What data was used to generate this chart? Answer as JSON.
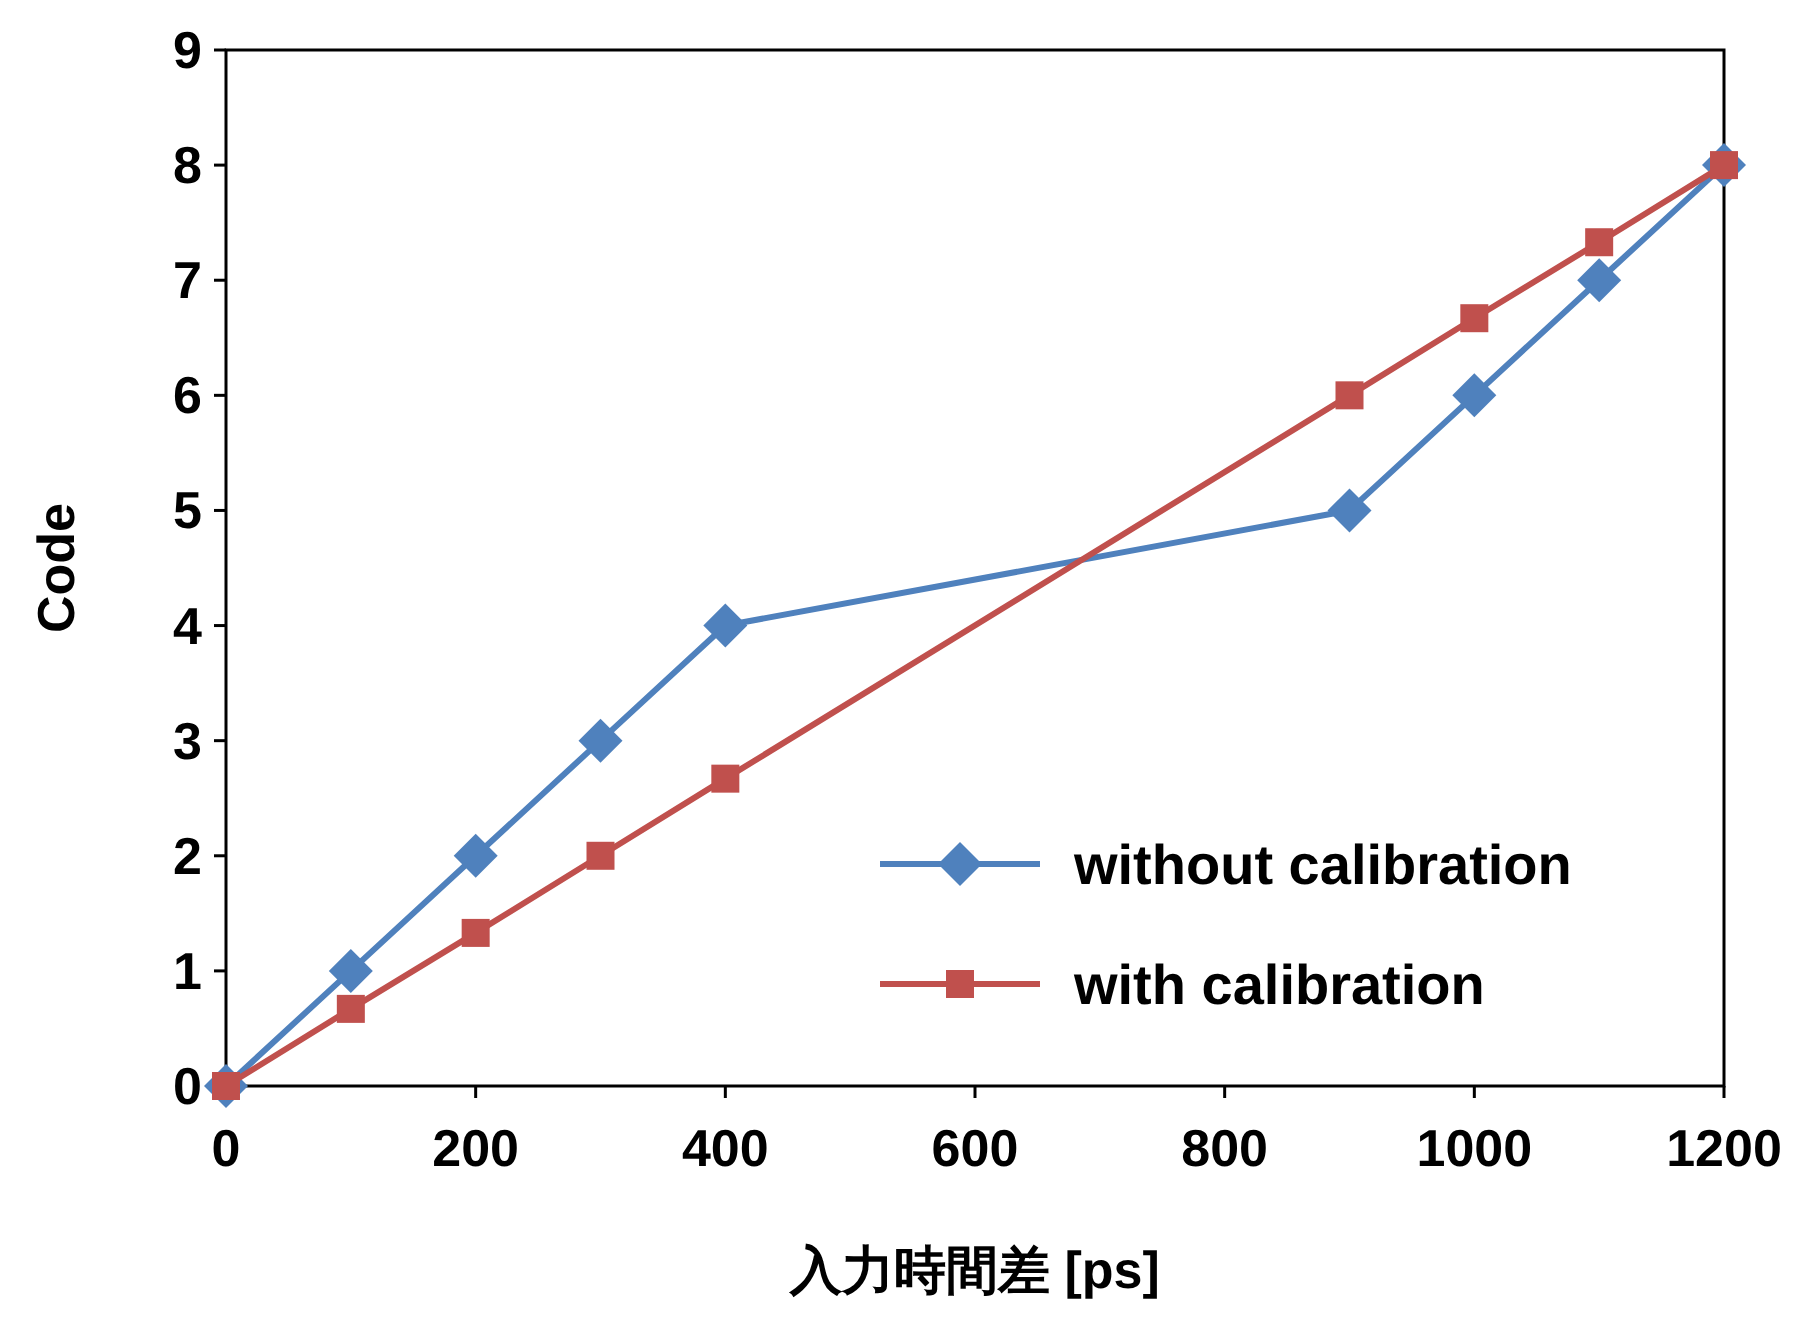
{
  "chart_data": {
    "type": "line",
    "xlabel": "入力時間差 [ps]",
    "ylabel": "Code",
    "xlim": [
      0,
      1200
    ],
    "ylim": [
      0,
      9
    ],
    "xticks": [
      0,
      200,
      400,
      600,
      800,
      1000,
      1200
    ],
    "yticks": [
      0,
      1,
      2,
      3,
      4,
      5,
      6,
      7,
      8,
      9
    ],
    "legend": "bottom right",
    "x": [
      0,
      100,
      200,
      300,
      400,
      900,
      1000,
      1100,
      1200
    ],
    "series": [
      {
        "name": "without calibration",
        "color": "#4f81bd",
        "marker": "diamond",
        "values": [
          0,
          1,
          2,
          3,
          4,
          5,
          6,
          7,
          8
        ]
      },
      {
        "name": "with calibration",
        "color": "#c0504d",
        "marker": "square",
        "values": [
          0,
          0.67,
          1.33,
          2,
          2.67,
          6,
          6.67,
          7.33,
          8
        ]
      }
    ]
  }
}
